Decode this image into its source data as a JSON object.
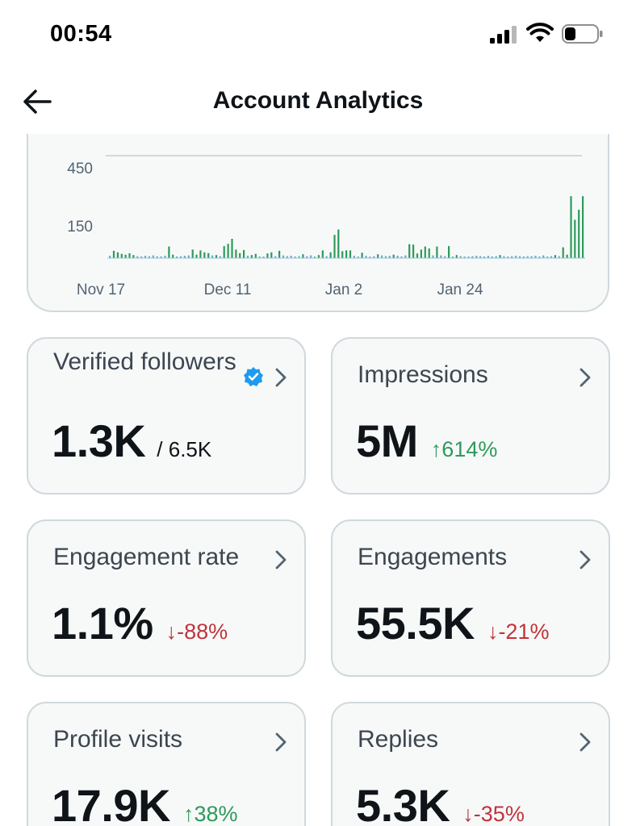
{
  "status_bar": {
    "time": "00:54"
  },
  "header": {
    "title": "Account Analytics",
    "back_icon": "arrow-left-icon"
  },
  "chart_data": {
    "type": "bar",
    "y_ticks": [
      "450",
      "150"
    ],
    "x_ticks": [
      "Nov 17",
      "Dec 11",
      "Jan 2",
      "Jan 24"
    ],
    "values": [
      12,
      38,
      30,
      22,
      18,
      25,
      16,
      10,
      8,
      12,
      10,
      14,
      9,
      8,
      12,
      60,
      18,
      8,
      10,
      12,
      14,
      44,
      18,
      40,
      30,
      26,
      14,
      16,
      10,
      62,
      74,
      100,
      44,
      26,
      42,
      12,
      16,
      22,
      8,
      8,
      24,
      30,
      10,
      38,
      14,
      10,
      12,
      8,
      10,
      20,
      10,
      14,
      8,
      16,
      40,
      10,
      30,
      120,
      148,
      36,
      40,
      40,
      12,
      8,
      28,
      12,
      8,
      10,
      20,
      14,
      10,
      12,
      18,
      12,
      8,
      14,
      72,
      70,
      24,
      44,
      60,
      50,
      14,
      60,
      14,
      10,
      62,
      8,
      16,
      10,
      8,
      8,
      10,
      12,
      10,
      8,
      12,
      8,
      10,
      16,
      10,
      8,
      10,
      12,
      10,
      8,
      10,
      10,
      12,
      8,
      14,
      8,
      10,
      16,
      10,
      56,
      18,
      320,
      198,
      250,
      320
    ],
    "colors": {
      "bar": "#2e9a5a",
      "small_bar": "#6aa9c8"
    }
  },
  "metrics": [
    {
      "label": "Verified followers",
      "value": "1.3K",
      "sub": "/ 6.5K",
      "change": "",
      "direction": "none"
    },
    {
      "label": "Impressions",
      "value": "5M",
      "sub": "",
      "change": "↑614%",
      "direction": "up"
    },
    {
      "label": "Engagement rate",
      "value": "1.1%",
      "sub": "",
      "change": "↓-88%",
      "direction": "down"
    },
    {
      "label": "Engagements",
      "value": "55.5K",
      "sub": "",
      "change": "↓-21%",
      "direction": "down"
    },
    {
      "label": "Profile visits",
      "value": "17.9K",
      "sub": "",
      "change": "↑38%",
      "direction": "up"
    },
    {
      "label": "Replies",
      "value": "5.3K",
      "sub": "",
      "change": "↓-35%",
      "direction": "down"
    }
  ],
  "icons": {
    "chevron": "chevron-right-icon",
    "verified": "verified-badge-icon"
  },
  "colors": {
    "up": "#2e9a5a",
    "down": "#c0343a",
    "verified": "#1d9bf0"
  }
}
